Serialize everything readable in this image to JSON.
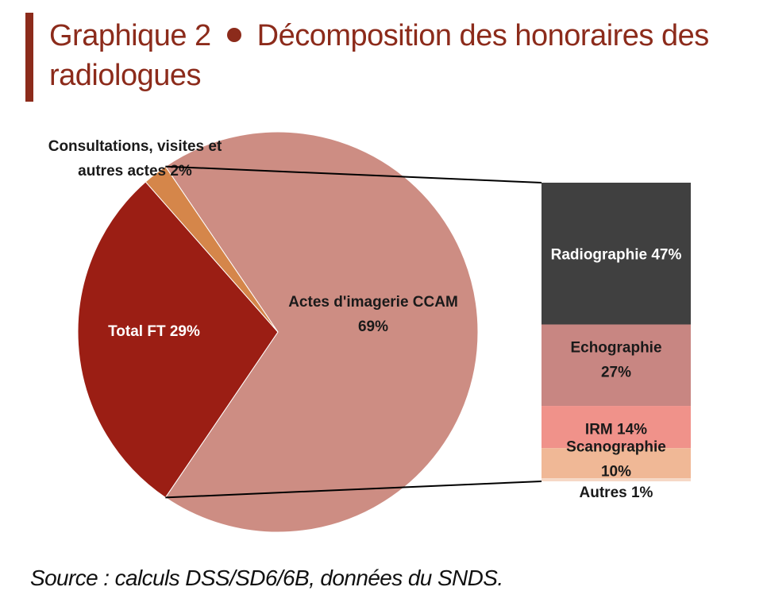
{
  "header": {
    "title_part1": "Graphique 2",
    "title_part2": "Décomposition des honoraires des radiologues"
  },
  "chart_data": {
    "type": "pie",
    "title": "Graphique 2 • Décomposition des honoraires des radiologues",
    "pie": {
      "slices": [
        {
          "label": "Actes d'imagerie CCAM",
          "value": 69,
          "label_lines": [
            "Actes d'imagerie CCAM",
            "69%"
          ],
          "color": "#cd8d83"
        },
        {
          "label": "Total FT",
          "value": 29,
          "label_lines": [
            "Total FT 29%"
          ],
          "color": "#9b1e14"
        },
        {
          "label": "Consultations, visites et autres actes",
          "value": 2,
          "label_lines": [
            "Consultations, visites et",
            "autres actes 2%"
          ],
          "color": "#d5864a"
        }
      ]
    },
    "breakdown": {
      "of": "Actes d'imagerie CCAM",
      "type": "stacked-bar",
      "segments": [
        {
          "label": "Radiographie",
          "value": 47,
          "label_lines": [
            "Radiographie 47%"
          ],
          "color": "#404040"
        },
        {
          "label": "Echographie",
          "value": 27,
          "label_lines": [
            "Echographie",
            "27%"
          ],
          "color": "#c88682"
        },
        {
          "label": "IRM",
          "value": 14,
          "label_lines": [
            "IRM 14%"
          ],
          "color": "#f0928a"
        },
        {
          "label": "Scanographie",
          "value": 10,
          "label_lines": [
            "Scanographie",
            "10%"
          ],
          "color": "#f0b896"
        },
        {
          "label": "Autres",
          "value": 1,
          "label_lines": [
            "Autres 1%"
          ],
          "color": "#f6d8c6"
        }
      ]
    },
    "source": "Source : calculs DSS/SD6/6B, données du SNDS."
  }
}
